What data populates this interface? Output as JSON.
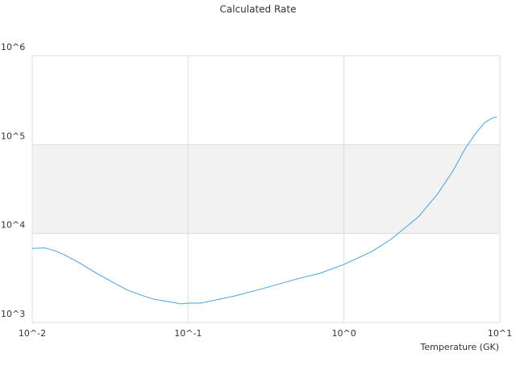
{
  "chart_data": {
    "type": "line",
    "title": "Calculated Rate",
    "x_label": "Temperature (GK)",
    "x_log": true,
    "y_log": true,
    "grid": true,
    "alternate_bands": true,
    "xlim": [
      0.01,
      10
    ],
    "ylim": [
      1000,
      1000000
    ],
    "xticks": [
      {
        "value": 0.01,
        "label": "10^-2"
      },
      {
        "value": 0.1,
        "label": "10^-1"
      },
      {
        "value": 1,
        "label": "10^0"
      },
      {
        "value": 10,
        "label": "10^1"
      }
    ],
    "yticks": [
      {
        "value": 1000,
        "label": "10^3"
      },
      {
        "value": 10000,
        "label": "10^4"
      },
      {
        "value": 100000,
        "label": "10^5"
      },
      {
        "value": 1000000,
        "label": "10^6"
      }
    ],
    "x": [
      0.01,
      0.012,
      0.014,
      0.016,
      0.02,
      0.025,
      0.03,
      0.04,
      0.05,
      0.06,
      0.08,
      0.09,
      0.1,
      0.12,
      0.15,
      0.2,
      0.3,
      0.5,
      0.7,
      1.0,
      1.5,
      2,
      3,
      4,
      5,
      6,
      7,
      8,
      9,
      9.6
    ],
    "series": [
      {
        "color": "#4a9fe0",
        "values": [
          6800,
          6900,
          6400,
          5800,
          4700,
          3700,
          3100,
          2350,
          2030,
          1830,
          1680,
          1620,
          1650,
          1650,
          1790,
          1990,
          2400,
          3090,
          3570,
          4500,
          6250,
          8600,
          15400,
          28100,
          50600,
          90700,
          134000,
          177000,
          200000,
          205000
        ]
      }
    ]
  }
}
